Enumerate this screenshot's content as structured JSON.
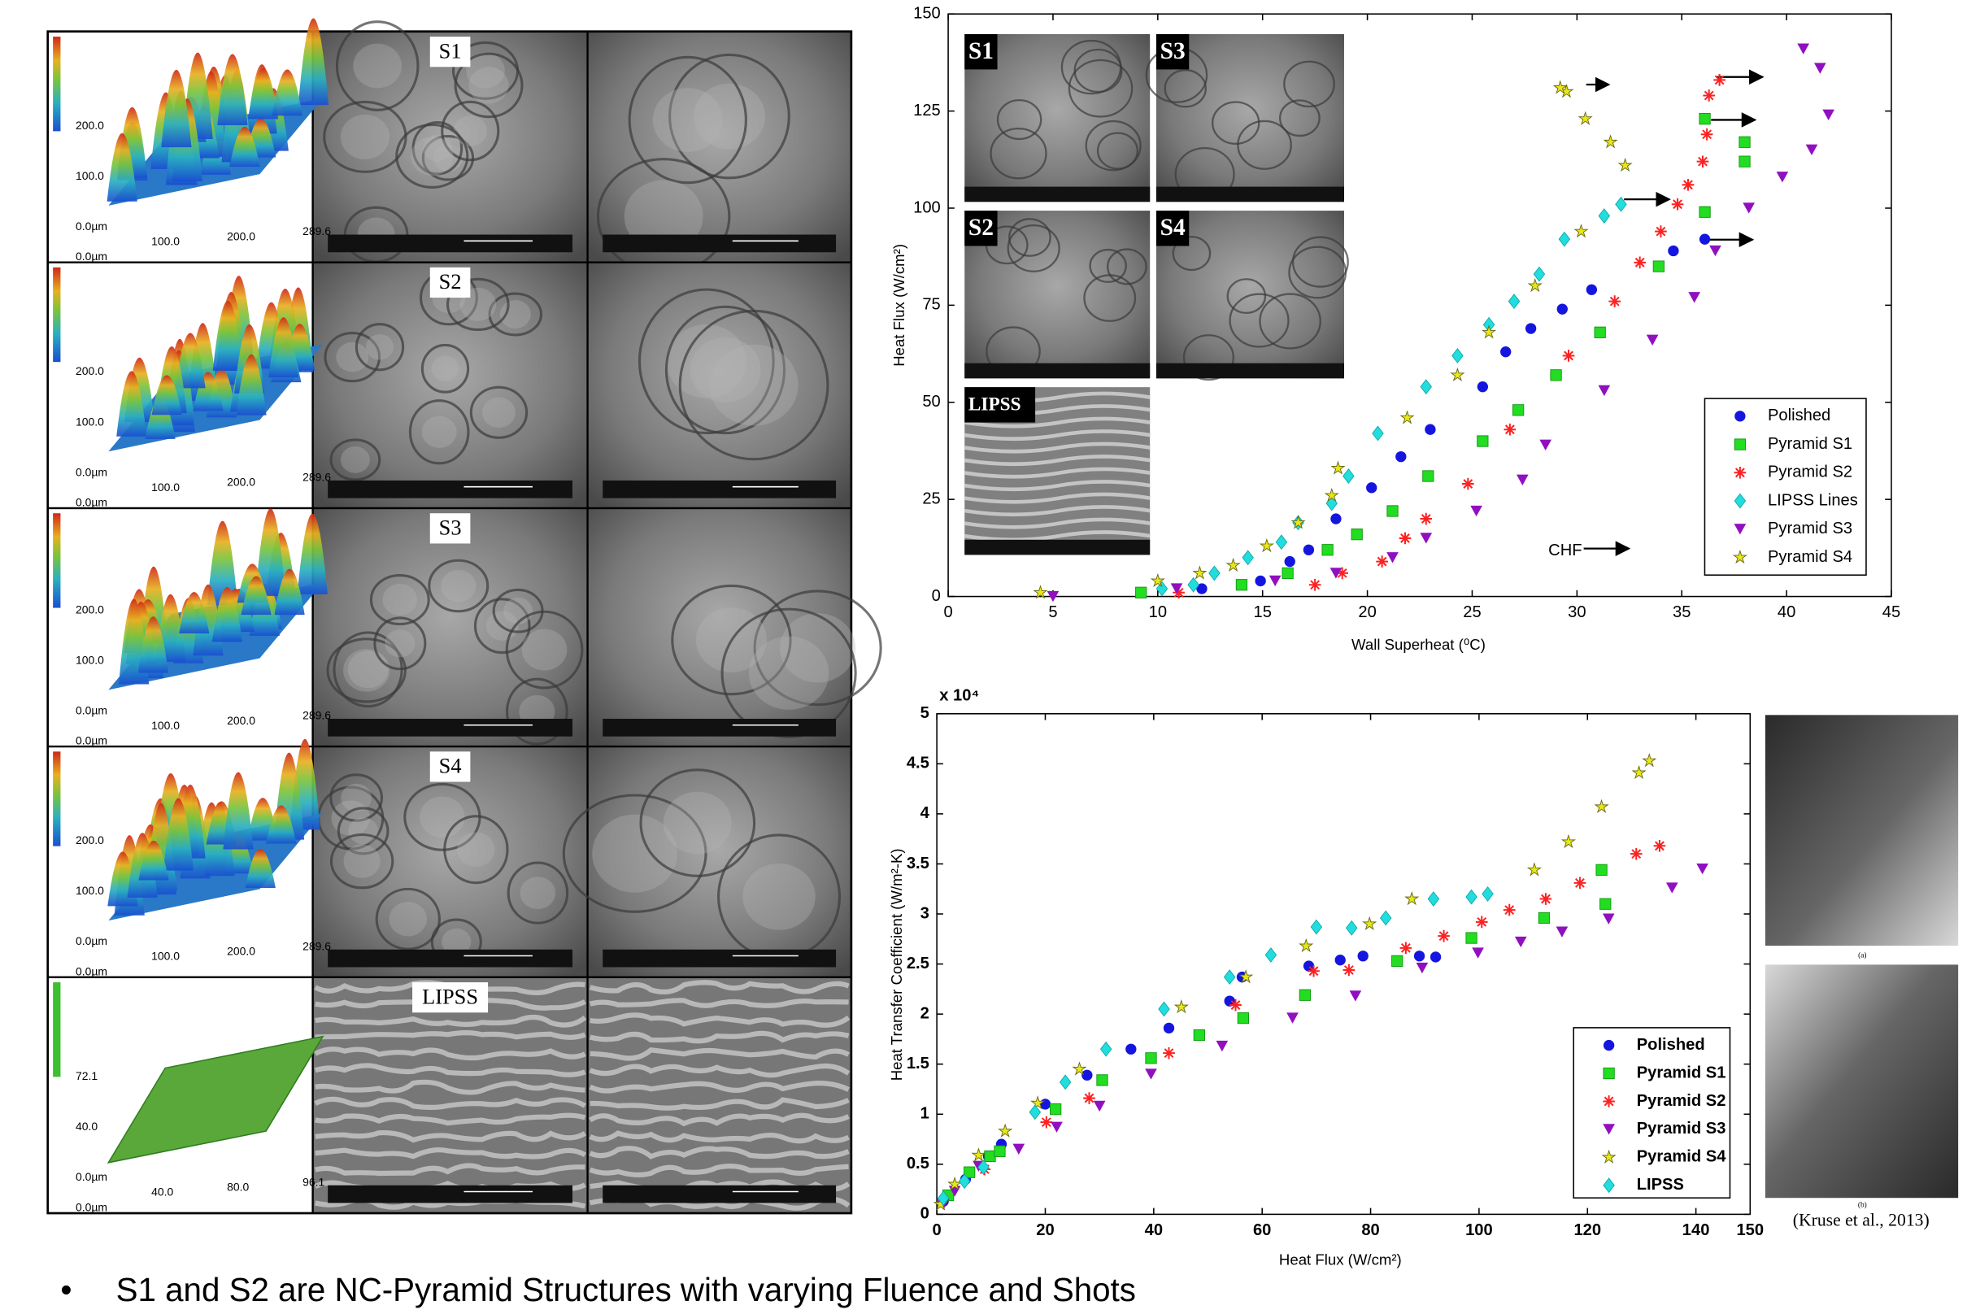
{
  "micrographs": {
    "labels": [
      "S1",
      "S2",
      "S3",
      "S4",
      "LIPSS"
    ],
    "profiles": [
      {
        "x_labels": [
          "0.0µm",
          "100.0",
          "200.0",
          "289.6"
        ],
        "y_labels": [
          "0.0µm",
          "100.0",
          "200.0"
        ]
      },
      {
        "x_labels": [
          "0.0µm",
          "100.0",
          "200.0",
          "289.6"
        ],
        "y_labels": [
          "0.0µm",
          "100.0",
          "200.0"
        ]
      },
      {
        "x_labels": [
          "0.0µm",
          "100.0",
          "200.0",
          "289.6"
        ],
        "y_labels": [
          "0.0µm",
          "100.0",
          "200.0"
        ]
      },
      {
        "x_labels": [
          "0.0µm",
          "100.0",
          "200.0",
          "289.6"
        ],
        "y_labels": [
          "0.0µm",
          "100.0",
          "200.0"
        ]
      },
      {
        "x_labels": [
          "0.0µm",
          "40.0",
          "80.0",
          "96.1"
        ],
        "y_labels": [
          "0.0µm",
          "40.0",
          "72.1"
        ]
      }
    ]
  },
  "chart_data": [
    {
      "type": "scatter",
      "x_label": "Wall Superheat (⁰C)",
      "y_label": "Heat Flux (W/cm²)",
      "annotation": "CHF",
      "insets": [
        "S1",
        "S3",
        "S2",
        "S4",
        "LIPSS"
      ],
      "xlim": [
        0,
        45
      ],
      "xticks": [
        0,
        5,
        10,
        15,
        20,
        25,
        30,
        35,
        40,
        45
      ],
      "ylim": [
        0,
        150
      ],
      "yticks": [
        0,
        25,
        50,
        75,
        100,
        125,
        150
      ],
      "legend": "lower right",
      "series": [
        {
          "name": "Polished",
          "color": "#1515e0",
          "marker": "circle",
          "x": [
            12.1,
            14.9,
            16.3,
            17.2,
            18.5,
            20.2,
            21.6,
            23,
            25.5,
            26.6,
            27.8,
            29.3,
            30.7,
            34.6,
            36.1
          ],
          "values": [
            2,
            4,
            9,
            12,
            20,
            28,
            36,
            43,
            54,
            63,
            69,
            74,
            79,
            89,
            92
          ]
        },
        {
          "name": "Pyramid S1",
          "color": "#22dd22",
          "marker": "square",
          "x": [
            9.2,
            14,
            16.2,
            18.1,
            19.5,
            21.2,
            22.9,
            25.5,
            27.2,
            29,
            31.1,
            33.9,
            36.1,
            38,
            38,
            36.1
          ],
          "values": [
            1,
            3,
            6,
            12,
            16,
            22,
            31,
            40,
            48,
            57,
            68,
            85,
            99,
            117,
            112,
            123
          ]
        },
        {
          "name": "Pyramid S2",
          "color": "#ff2020",
          "marker": "asterisk",
          "x": [
            11,
            17.5,
            18.8,
            20.7,
            21.8,
            22.8,
            24.8,
            26.8,
            29.6,
            31.8,
            33,
            34,
            34.8,
            35.3,
            36,
            36.2,
            36.3,
            36.8
          ],
          "values": [
            1,
            3,
            6,
            9,
            15,
            20,
            29,
            43,
            62,
            76,
            86,
            94,
            101,
            106,
            112,
            119,
            129,
            133
          ]
        },
        {
          "name": "LIPSS Lines",
          "color": "#22dddd",
          "marker": "diamond",
          "x": [
            10.2,
            11.7,
            12.7,
            14.3,
            15.9,
            16.7,
            18.3,
            19.1,
            20.5,
            22.8,
            24.3,
            25.8,
            27,
            28.2,
            29.4,
            31.3,
            32.1
          ],
          "values": [
            2,
            3,
            6,
            10,
            14,
            19,
            24,
            31,
            42,
            54,
            62,
            70,
            76,
            83,
            92,
            98,
            101
          ]
        },
        {
          "name": "Pyramid S3",
          "color": "#9010c0",
          "marker": "triangle",
          "x": [
            5,
            10.9,
            15.6,
            18.5,
            21.2,
            22.8,
            25.2,
            27.4,
            28.5,
            31.3,
            33.6,
            35.6,
            36.6,
            38.2,
            39.8,
            41.2,
            42,
            41.6,
            40.8
          ],
          "values": [
            0,
            2,
            4,
            6,
            10,
            15,
            22,
            30,
            39,
            53,
            66,
            77,
            89,
            100,
            108,
            115,
            124,
            136,
            141
          ]
        },
        {
          "name": "Pyramid S4",
          "color": "#e8e818",
          "marker": "star",
          "x": [
            4.4,
            10,
            12,
            13.6,
            15.2,
            16.7,
            18.3,
            18.6,
            21.9,
            24.3,
            25.8,
            28,
            30.2,
            32.3,
            31.6,
            30.4,
            29.5,
            29.2
          ],
          "values": [
            1,
            4,
            6,
            8,
            13,
            19,
            26,
            33,
            46,
            57,
            68,
            80,
            94,
            111,
            117,
            123,
            130,
            131
          ]
        }
      ]
    },
    {
      "type": "scatter",
      "x_label": "Heat Flux (W/cm²)",
      "y_label": "Heat Transfer Coefficient (W/m²-K)",
      "y_multiplier": "x 10⁴",
      "xlim": [
        0,
        150
      ],
      "xticks": [
        0,
        20,
        40,
        60,
        80,
        100,
        120,
        140,
        150
      ],
      "ylim": [
        0,
        5
      ],
      "yticks": [
        0,
        0.5,
        1,
        1.5,
        2,
        2.5,
        3,
        3.5,
        4,
        4.5,
        5
      ],
      "legend": "lower right",
      "series": [
        {
          "name": "Polished",
          "color": "#1515e0",
          "marker": "circle",
          "x": [
            1.2,
            5.3,
            9.5,
            11.9,
            20,
            27.7,
            35.8,
            42.8,
            54,
            56.3,
            68.6,
            74.4,
            78.6,
            89,
            92
          ],
          "values": [
            0.13,
            0.35,
            0.58,
            0.7,
            1.1,
            1.39,
            1.65,
            1.86,
            2.13,
            2.37,
            2.48,
            2.54,
            2.58,
            2.58,
            2.57
          ]
        },
        {
          "name": "Pyramid S1",
          "color": "#22dd22",
          "marker": "square",
          "x": [
            2.1,
            6,
            9.8,
            11.6,
            21.9,
            30.5,
            39.5,
            48.4,
            56.5,
            67.9,
            84.9,
            98.6,
            112,
            123.3,
            122.6
          ],
          "values": [
            0.19,
            0.42,
            0.58,
            0.63,
            1.05,
            1.34,
            1.56,
            1.79,
            1.96,
            2.19,
            2.53,
            2.76,
            2.96,
            3.1,
            3.44
          ]
        },
        {
          "name": "Pyramid S2",
          "color": "#ff2020",
          "marker": "asterisk",
          "x": [
            8.8,
            20.2,
            28.1,
            42.8,
            55.1,
            69.5,
            76,
            86.5,
            93.5,
            100.5,
            105.6,
            112.3,
            118.6,
            129,
            133.3
          ],
          "values": [
            0.45,
            0.92,
            1.16,
            1.61,
            2.09,
            2.43,
            2.44,
            2.66,
            2.78,
            2.92,
            3.04,
            3.15,
            3.31,
            3.6,
            3.68
          ]
        },
        {
          "name": "Pyramid S3",
          "color": "#9010c0",
          "marker": "triangle",
          "x": [
            1.2,
            3.3,
            7.7,
            15.1,
            22.1,
            30,
            39.5,
            52.6,
            65.6,
            77.2,
            89.5,
            99.8,
            107.7,
            115.3,
            123.9,
            135.6,
            141.2
          ],
          "values": [
            0.1,
            0.23,
            0.48,
            0.65,
            0.87,
            1.08,
            1.4,
            1.68,
            1.96,
            2.18,
            2.46,
            2.61,
            2.72,
            2.82,
            2.95,
            3.26,
            3.45
          ]
        },
        {
          "name": "Pyramid S4",
          "color": "#e8e818",
          "marker": "star",
          "x": [
            0.7,
            3.3,
            7.7,
            12.6,
            18.6,
            26.3,
            45.1,
            57,
            68.1,
            79.8,
            87.6,
            110.2,
            116.5,
            122.6,
            129.5,
            131.4
          ],
          "values": [
            0.1,
            0.3,
            0.59,
            0.83,
            1.11,
            1.45,
            2.07,
            2.37,
            2.68,
            2.9,
            3.15,
            3.44,
            3.72,
            4.07,
            4.41,
            4.53
          ]
        },
        {
          "name": "LIPSS",
          "color": "#22dddd",
          "marker": "diamond",
          "x": [
            1.2,
            5.1,
            8.6,
            18.1,
            23.7,
            31.2,
            41.9,
            54,
            61.6,
            70,
            76.5,
            82.8,
            91.6,
            98.6,
            101.6
          ],
          "values": [
            0.16,
            0.33,
            0.47,
            1.02,
            1.32,
            1.65,
            2.05,
            2.37,
            2.59,
            2.87,
            2.86,
            2.96,
            3.15,
            3.17,
            3.2
          ]
        }
      ]
    }
  ],
  "side_images": {
    "captions": [
      "(a)",
      "(b)"
    ],
    "citation": "(Kruse et al., 2013)"
  },
  "bullet": "S1 and S2 are NC-Pyramid Structures with varying Fluence and Shots"
}
